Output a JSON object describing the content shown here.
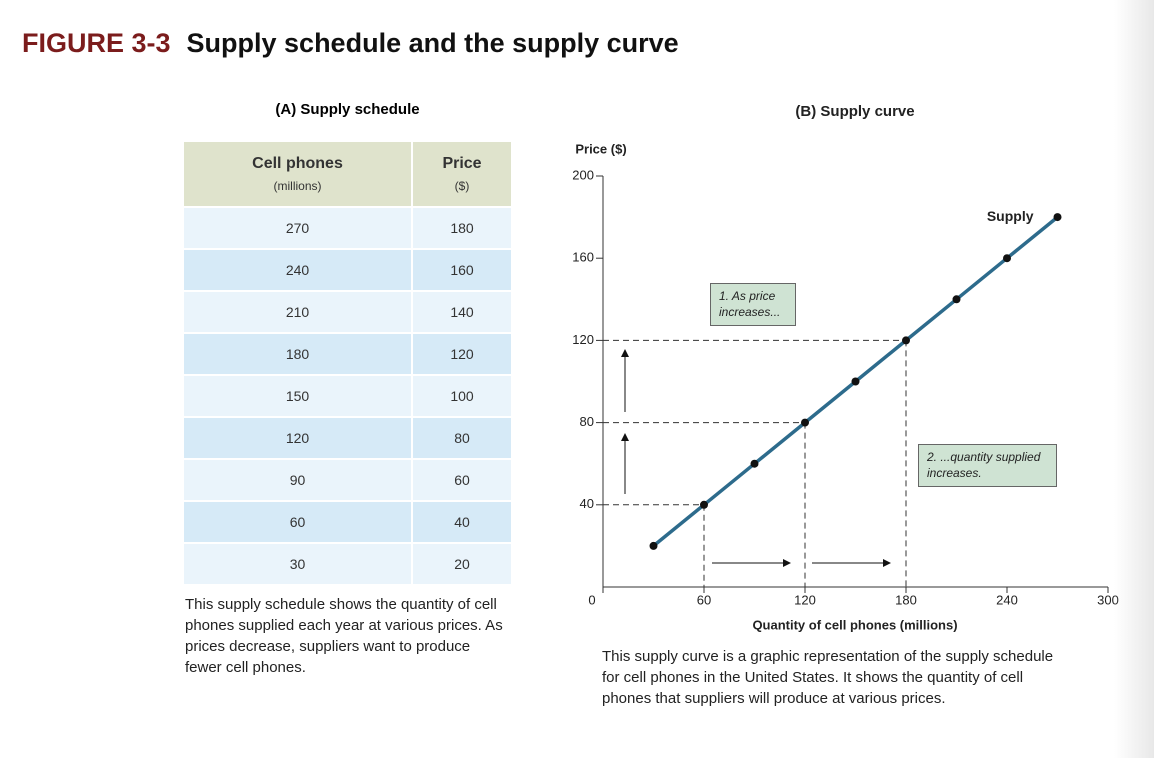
{
  "figure": {
    "label": "FIGURE 3-3",
    "title": "Supply schedule and the supply curve"
  },
  "table": {
    "title": "(A) Supply schedule",
    "headers": [
      {
        "name": "Cell phones",
        "unit": "(millions)"
      },
      {
        "name": "Price",
        "unit": "($)"
      }
    ],
    "rows": [
      [
        270,
        180
      ],
      [
        240,
        160
      ],
      [
        210,
        140
      ],
      [
        180,
        120
      ],
      [
        150,
        100
      ],
      [
        120,
        80
      ],
      [
        90,
        60
      ],
      [
        60,
        40
      ],
      [
        30,
        20
      ]
    ],
    "caption": "This supply schedule shows the quantity of cell phones supplied each year at various prices. As prices decrease, suppliers want to produce fewer cell phones."
  },
  "chart_data": {
    "type": "line",
    "title": "(B) Supply curve",
    "x_label": "Quantity of cell phones (millions)",
    "y_label": "Price ($)",
    "series": [
      {
        "name": "Supply",
        "color": "#2d6b8c",
        "x": [
          30,
          60,
          90,
          120,
          150,
          180,
          210,
          240,
          270
        ],
        "values": [
          20,
          40,
          60,
          80,
          100,
          120,
          140,
          160,
          180
        ]
      }
    ],
    "xlim": [
      0,
      300
    ],
    "ylim": [
      0,
      200
    ],
    "xticks": [
      0,
      60,
      120,
      180,
      240,
      300
    ],
    "yticks": [
      40,
      80,
      120,
      160,
      200
    ],
    "guide_lines": [
      [
        60,
        40
      ],
      [
        120,
        80
      ],
      [
        180,
        120
      ]
    ],
    "annotations": [
      "1. As price increases...",
      "2. ...quantity supplied increases."
    ],
    "caption": "This supply curve is a graphic representation of the supply schedule for cell phones in the United States. It shows the quantity of cell phones that suppliers will produce at various prices."
  }
}
